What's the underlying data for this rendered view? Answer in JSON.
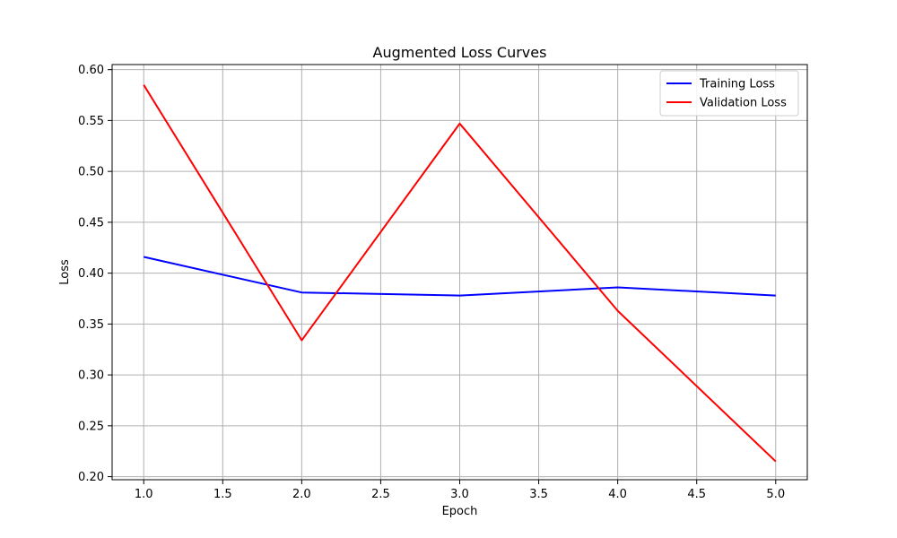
{
  "chart_data": {
    "type": "line",
    "title": "Augmented Loss Curves",
    "xlabel": "Epoch",
    "ylabel": "Loss",
    "x": [
      1,
      2,
      3,
      4,
      5
    ],
    "xlim": [
      0.8,
      5.2
    ],
    "ylim": [
      0.197,
      0.605
    ],
    "x_ticks": [
      1.0,
      1.5,
      2.0,
      2.5,
      3.0,
      3.5,
      4.0,
      4.5,
      5.0
    ],
    "x_tick_labels": [
      "1.0",
      "1.5",
      "2.0",
      "2.5",
      "3.0",
      "3.5",
      "4.0",
      "4.5",
      "5.0"
    ],
    "y_ticks": [
      0.2,
      0.25,
      0.3,
      0.35,
      0.4,
      0.45,
      0.5,
      0.55,
      0.6
    ],
    "y_tick_labels": [
      "0.20",
      "0.25",
      "0.30",
      "0.35",
      "0.40",
      "0.45",
      "0.50",
      "0.55",
      "0.60"
    ],
    "grid": true,
    "legend_position": "top-right",
    "series": [
      {
        "name": "Training Loss",
        "color": "#0000ff",
        "values": [
          0.416,
          0.381,
          0.378,
          0.386,
          0.378
        ]
      },
      {
        "name": "Validation Loss",
        "color": "#ff0000",
        "values": [
          0.585,
          0.334,
          0.547,
          0.363,
          0.215
        ]
      }
    ]
  }
}
